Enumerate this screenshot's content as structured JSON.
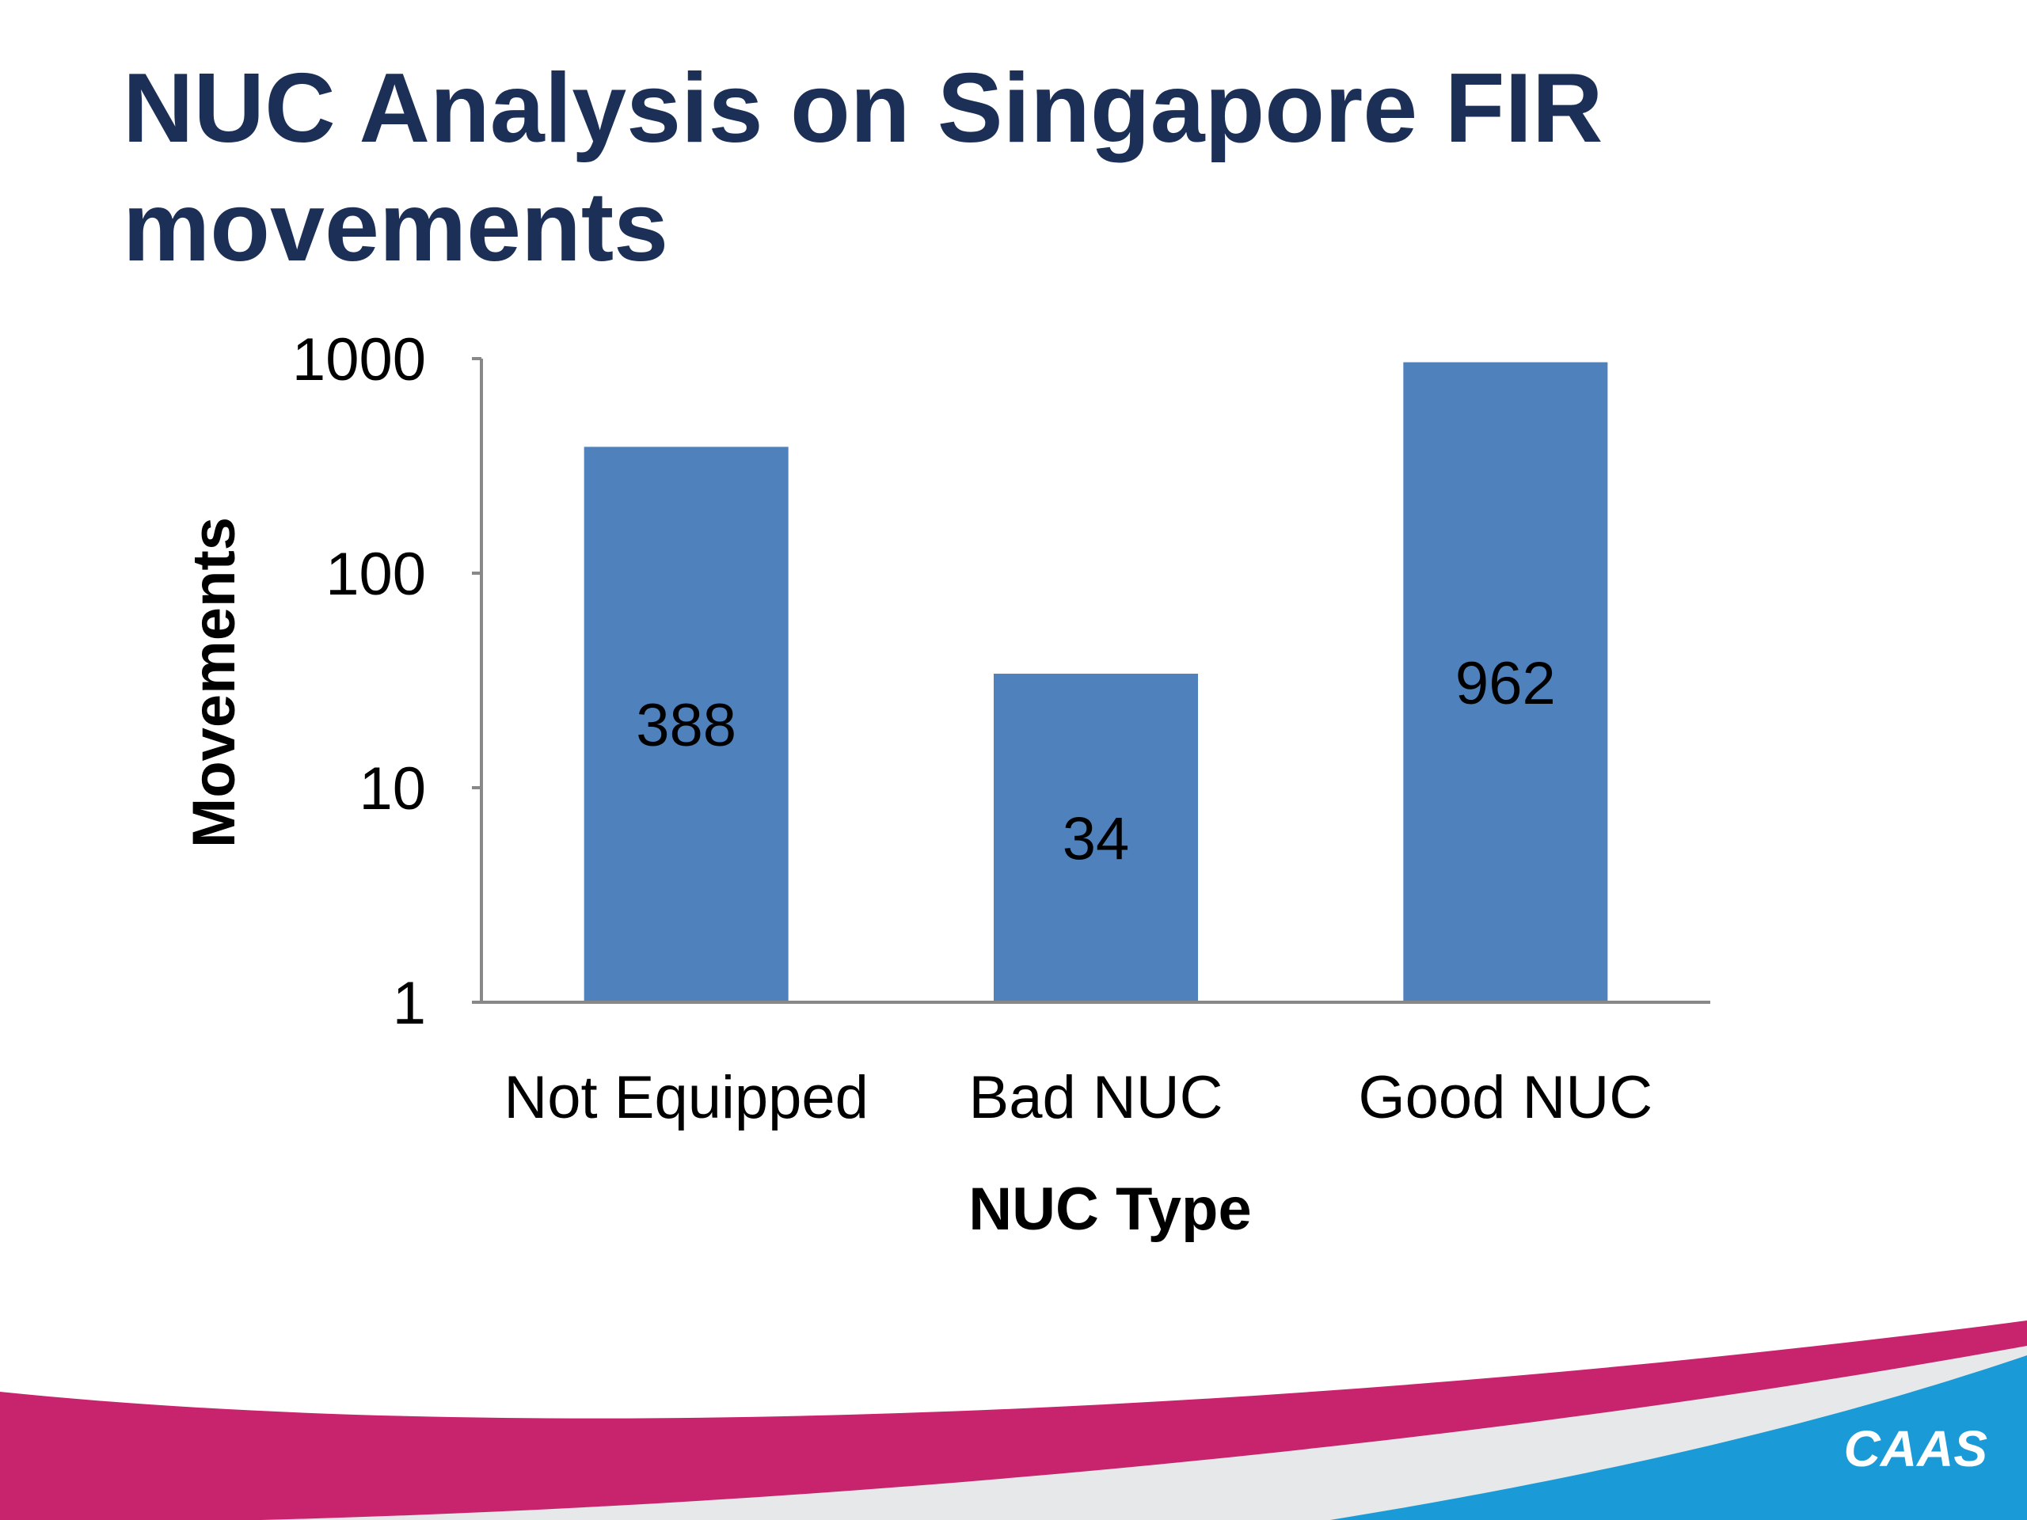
{
  "slide": {
    "title": "NUC Analysis on Singapore FIR movements",
    "logo_text": "CAAS"
  },
  "colors": {
    "title": "#1b2f57",
    "bar": "#4f81bd",
    "axis": "#888888",
    "band_magenta": "#c8246e",
    "band_light": "#e6e8ea",
    "band_blue": "#1a9ad6"
  },
  "chart_data": {
    "type": "bar",
    "categories": [
      "Not Equipped",
      "Bad NUC",
      "Good NUC"
    ],
    "values": [
      388,
      34,
      962
    ],
    "data_labels": [
      "388",
      "34",
      "962"
    ],
    "xlabel": "NUC Type",
    "ylabel": "Movements",
    "yscale": "log",
    "ylim": [
      1,
      1000
    ],
    "yticks": [
      1,
      10,
      100,
      1000
    ],
    "ytick_labels": [
      "1",
      "10",
      "100",
      "1000"
    ],
    "grid": false,
    "legend": "none"
  }
}
